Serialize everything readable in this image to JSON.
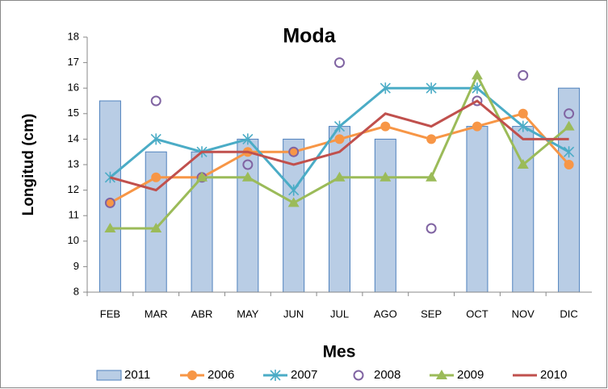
{
  "chart_data": {
    "type": "bar-line",
    "title": "Moda",
    "x_label": "Mes",
    "y_label": "Longitud (cm)",
    "categories": [
      "FEB",
      "MAR",
      "ABR",
      "MAY",
      "JUN",
      "JUL",
      "AGO",
      "SEP",
      "OCT",
      "NOV",
      "DIC"
    ],
    "ylim": [
      8,
      18
    ],
    "yticks": [
      8,
      9,
      10,
      11,
      12,
      13,
      14,
      15,
      16,
      17,
      18
    ],
    "legend": "bottom",
    "series": [
      {
        "name": "2011",
        "type": "bar",
        "color": "#b9cde5",
        "values": [
          15.5,
          13.5,
          13.5,
          14,
          14,
          14.5,
          14,
          null,
          14.5,
          14.5,
          16
        ]
      },
      {
        "name": "2006",
        "type": "line",
        "marker": "circle",
        "color": "#f79646",
        "values": [
          11.5,
          12.5,
          12.5,
          13.5,
          13.5,
          14,
          14.5,
          14,
          14.5,
          15,
          13
        ]
      },
      {
        "name": "2007",
        "type": "line",
        "marker": "star",
        "color": "#4bacc6",
        "values": [
          12.5,
          14,
          13.5,
          14,
          12,
          14.5,
          16,
          16,
          16,
          14.5,
          13.5
        ]
      },
      {
        "name": "2008",
        "type": "marker",
        "marker": "ring",
        "color": "#8064a2",
        "values": [
          11.5,
          15.5,
          12.5,
          13,
          13.5,
          17,
          null,
          10.5,
          15.5,
          16.5,
          15
        ]
      },
      {
        "name": "2009",
        "type": "line",
        "marker": "triangle",
        "color": "#9bbb59",
        "values": [
          10.5,
          10.5,
          12.5,
          12.5,
          11.5,
          12.5,
          12.5,
          12.5,
          16.5,
          13,
          14.5
        ]
      },
      {
        "name": "2010",
        "type": "line",
        "marker": "none",
        "color": "#c0504d",
        "values": [
          12.5,
          12,
          13.5,
          13.5,
          13,
          13.5,
          15,
          14.5,
          15.5,
          14,
          14
        ]
      }
    ]
  }
}
